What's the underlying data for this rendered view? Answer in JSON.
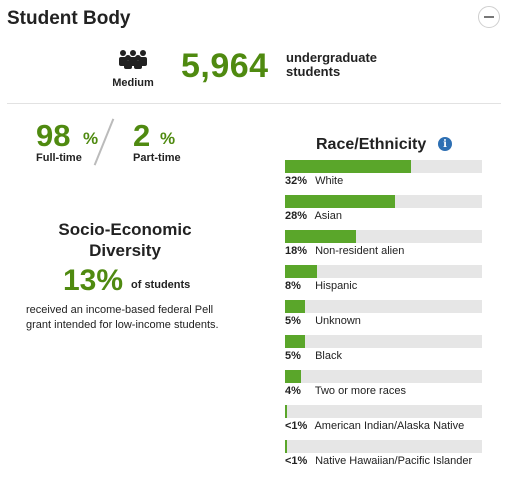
{
  "header": {
    "title": "Student Body",
    "collapse_icon": "minus-icon"
  },
  "enrollment": {
    "size_icon": "people-group-icon",
    "size_label": "Medium",
    "count": "5,964",
    "count_text": "undergraduate students"
  },
  "attendance": {
    "full_time_value": "98",
    "full_time_pct": "%",
    "full_time_label": "Full-time",
    "part_time_value": "2",
    "part_time_pct": "%",
    "part_time_label": "Part-time"
  },
  "socio_economic": {
    "title": "Socio-Economic Diversity",
    "value": "13%",
    "of_students": "of students",
    "description": "received an income-based federal Pell grant intended for low-income students."
  },
  "race": {
    "title": "Race/Ethnicity",
    "info_icon": "info-icon",
    "colors": {
      "fill": "#5aa62a",
      "track": "#e6e6e6"
    },
    "items": [
      {
        "pct_label": "32%",
        "label": "White",
        "value": 0.32
      },
      {
        "pct_label": "28%",
        "label": "Asian",
        "value": 0.28
      },
      {
        "pct_label": "18%",
        "label": "Non-resident alien",
        "value": 0.18
      },
      {
        "pct_label": "8%",
        "label": "Hispanic",
        "value": 0.08
      },
      {
        "pct_label": "5%",
        "label": "Unknown",
        "value": 0.05
      },
      {
        "pct_label": "5%",
        "label": "Black",
        "value": 0.05
      },
      {
        "pct_label": "4%",
        "label": "Two or more races",
        "value": 0.04
      },
      {
        "pct_label": "<1%",
        "label": "American Indian/Alaska Native",
        "value": 0.005
      },
      {
        "pct_label": "<1%",
        "label": "Native Hawaiian/Pacific Islander",
        "value": 0.005
      }
    ]
  }
}
